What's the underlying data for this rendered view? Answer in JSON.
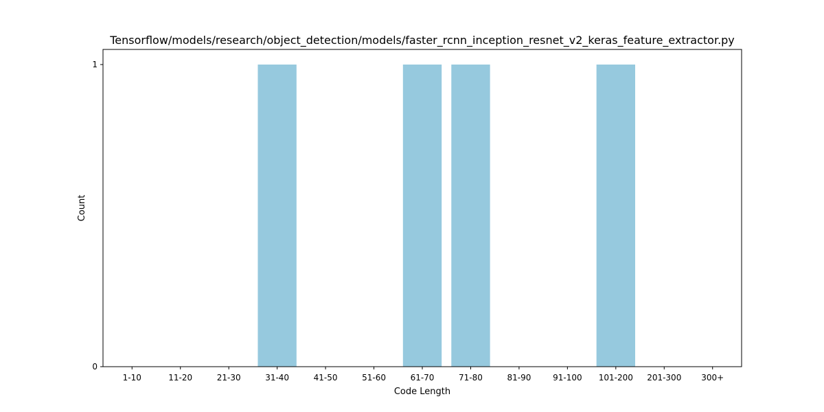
{
  "chart_data": {
    "type": "bar",
    "title": "Tensorflow/models/research/object_detection/models/faster_rcnn_inception_resnet_v2_keras_feature_extractor.py",
    "xlabel": "Code Length",
    "ylabel": "Count",
    "categories": [
      "1-10",
      "11-20",
      "21-30",
      "31-40",
      "41-50",
      "51-60",
      "61-70",
      "71-80",
      "81-90",
      "91-100",
      "101-200",
      "201-300",
      "300+"
    ],
    "values": [
      0,
      0,
      0,
      1,
      0,
      0,
      1,
      1,
      0,
      0,
      1,
      0,
      0
    ],
    "ylim": [
      0,
      1.05
    ],
    "yticks": [
      0,
      1
    ],
    "grid": false,
    "bar_color": "#96c9de"
  }
}
